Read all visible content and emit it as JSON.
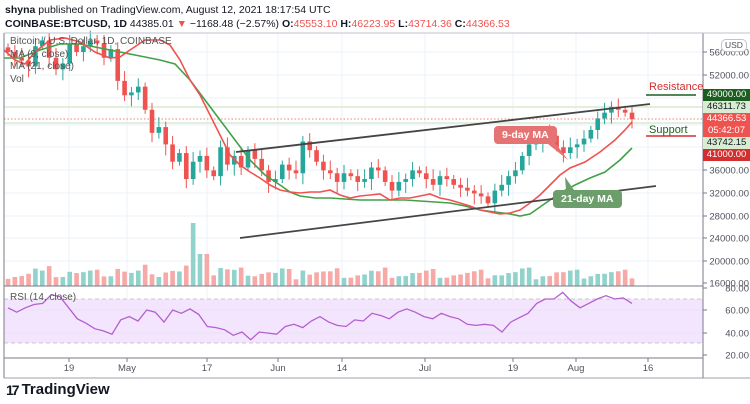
{
  "header": {
    "publisher": "shyna",
    "published_text": " published on TradingView.com, August 12, 2021 18:17:54 UTC",
    "symbol": "COINBASE:BTCUSD, 1D",
    "last": "44385.01",
    "down_arrow": "▼",
    "change": "−1168.48 (−2.57%)",
    "o_label": "O:",
    "o_value": "45553.10",
    "h_label": "H:",
    "h_value": "46223.95",
    "l_label": "L:",
    "l_value": "43714.36",
    "c_label": "C:",
    "c_value": "44366.53"
  },
  "legend": {
    "title": "Bitcoin / U.S. Dollar, 1D, COINBASE",
    "ma9": "MA (9, close)",
    "ma21": "MA (21, close)",
    "vol": "Vol",
    "rsi": "RSI (14, close)"
  },
  "price_axis": {
    "currency": "USD",
    "ticks": [
      "56000.00",
      "52000.00",
      "48000.00",
      "36000.00",
      "32000.00",
      "28000.00",
      "24000.00",
      "20000.00",
      "16000.00"
    ],
    "tags": {
      "resistance": "49000.00",
      "ma_upper": "46311.73",
      "last_price": "44366.53",
      "countdown": "05:42:07",
      "ma_lower": "43742.15",
      "support": "41000.00"
    }
  },
  "rsi_axis": {
    "ticks": [
      "80.00",
      "60.00",
      "40.00",
      "20.00"
    ]
  },
  "time_axis": {
    "ticks": [
      "19",
      "May",
      "17",
      "Jun",
      "14",
      "Jul",
      "19",
      "Aug",
      "16"
    ]
  },
  "annotations": {
    "resistance": "Resistance",
    "support": "Support",
    "ma9_callout": "9-day MA",
    "ma21_callout": "21-day MA"
  },
  "colors": {
    "up": "#26a69a",
    "down": "#ef5350",
    "ma9": "#ef5350",
    "ma21": "#43a047",
    "rsi": "#b45fcf",
    "resistance": "#1b5e20",
    "support": "#d32f2f",
    "ma9_callout_bg": "#e57373",
    "ma21_callout_bg": "#6b9e6b"
  },
  "footer": {
    "brand": "TradingView"
  },
  "chart_data": {
    "type": "candlestick",
    "title": "Bitcoin / U.S. Dollar, 1D, COINBASE",
    "symbol": "COINBASE:BTCUSD",
    "interval": "1D",
    "last_ohlc": {
      "open": 45553.1,
      "high": 46223.95,
      "low": 43714.36,
      "close": 44366.53
    },
    "x_ticks": [
      "19 Apr",
      "May",
      "17 May",
      "Jun",
      "14 Jun",
      "Jul",
      "19 Jul",
      "Aug",
      "16 Aug"
    ],
    "y_range": [
      16000,
      58000
    ],
    "y_ticks": [
      16000,
      20000,
      24000,
      28000,
      32000,
      36000,
      48000,
      52000,
      56000
    ],
    "levels": {
      "resistance": 49000,
      "support": 41000,
      "ma9": 43742.15,
      "ma21_label": 46311.73
    },
    "indicators": [
      "MA (9, close)",
      "MA (21, close)",
      "Vol",
      "RSI (14, close)"
    ],
    "close_approx": [
      56000,
      55000,
      54500,
      53500,
      57000,
      58000,
      55000,
      53000,
      54000,
      57500,
      56000,
      57000,
      58000,
      57500,
      55000,
      56500,
      51000,
      48500,
      49000,
      50000,
      46000,
      42000,
      43000,
      40000,
      37000,
      38500,
      34000,
      37000,
      38000,
      35500,
      34500,
      39500,
      36500,
      38000,
      36000,
      39000,
      37500,
      35500,
      33500,
      34000,
      36500,
      35500,
      35000,
      40500,
      39000,
      37000,
      35500,
      35000,
      33500,
      35000,
      34500,
      33500,
      34000,
      36000,
      35500,
      33500,
      32000,
      33500,
      34000,
      35500,
      35000,
      34000,
      33000,
      34500,
      34000,
      33000,
      32500,
      32000,
      31500,
      31000,
      29800,
      32000,
      33000,
      34500,
      35500,
      38000,
      40000,
      40500,
      42000,
      41500,
      39500,
      38500,
      39500,
      40000,
      41000,
      42500,
      44500,
      45500,
      46500,
      46000,
      45500,
      44366
    ],
    "rsi_approx": [
      62,
      58,
      62,
      65,
      66,
      74,
      72,
      62,
      52,
      48,
      43,
      41,
      38,
      51,
      54,
      50,
      60,
      58,
      49,
      60,
      57,
      61,
      56,
      45,
      44,
      42,
      37,
      40,
      33,
      40,
      39,
      38,
      45,
      47,
      44,
      50,
      54,
      49,
      46,
      45,
      51,
      50,
      57,
      55,
      52,
      58,
      61,
      58,
      54,
      52,
      57,
      54,
      52,
      47,
      46,
      47,
      46,
      40,
      49,
      53,
      57,
      66,
      70,
      70,
      76,
      68,
      62,
      66,
      70,
      73,
      70,
      71,
      66
    ],
    "rsi_band": [
      30,
      70
    ],
    "rsi_ylim": [
      20,
      80
    ]
  }
}
